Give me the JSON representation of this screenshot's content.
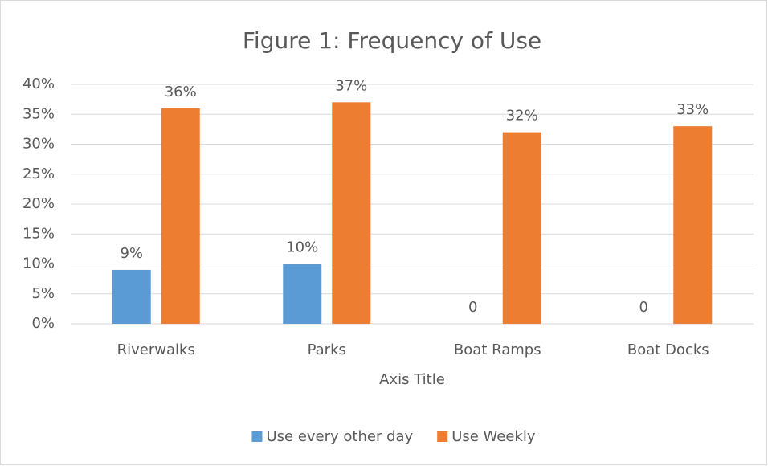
{
  "chart_data": {
    "type": "bar",
    "title": "Figure 1: Frequency of Use",
    "x_label": "Axis Title",
    "categories": [
      "Riverwalks",
      "Parks",
      "Boat Ramps",
      "Boat Docks"
    ],
    "series": [
      {
        "name": "Use every other day",
        "color": "#5b9bd5",
        "values": [
          9,
          10,
          0,
          0
        ],
        "value_labels": [
          "9%",
          "10%",
          "0",
          "0"
        ]
      },
      {
        "name": "Use Weekly",
        "color": "#ed7d31",
        "values": [
          36,
          37,
          32,
          33
        ],
        "value_labels": [
          "36%",
          "37%",
          "32%",
          "33%"
        ]
      }
    ],
    "ylim": [
      0,
      40
    ],
    "yticks": [
      {
        "value": 0,
        "label": "0%"
      },
      {
        "value": 5,
        "label": "5%"
      },
      {
        "value": 10,
        "label": "10%"
      },
      {
        "value": 15,
        "label": "15%"
      },
      {
        "value": 20,
        "label": "20%"
      },
      {
        "value": 25,
        "label": "25%"
      },
      {
        "value": 30,
        "label": "30%"
      },
      {
        "value": 35,
        "label": "35%"
      },
      {
        "value": 40,
        "label": "40%"
      }
    ],
    "grid": true,
    "legend": "bottom"
  }
}
